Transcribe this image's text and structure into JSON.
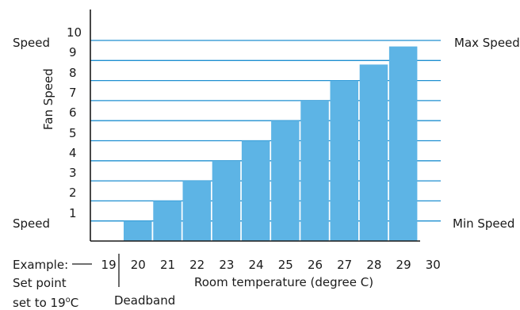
{
  "chart_data": {
    "type": "bar",
    "categories": [
      "20",
      "21",
      "22",
      "23",
      "24",
      "25",
      "26",
      "27",
      "28",
      "29"
    ],
    "values": [
      1,
      2,
      3,
      4,
      5,
      6,
      7,
      8,
      8.8,
      9.7
    ],
    "x_ticks": [
      "19",
      "20",
      "21",
      "22",
      "23",
      "24",
      "25",
      "26",
      "27",
      "28",
      "29",
      "30"
    ],
    "y_ticks": [
      1,
      2,
      3,
      4,
      5,
      6,
      7,
      8,
      9,
      10
    ],
    "ylim": [
      0,
      10
    ],
    "xlabel": "Room temperature (degree C)",
    "ylabel": "Fan Speed",
    "grid": true,
    "annotations": {
      "left_top": "Speed",
      "left_bottom": "Speed",
      "right_top": "Max Speed",
      "right_bottom": "Min Speed",
      "example_line1": "Example:",
      "example_line2": "Set point",
      "example_line3_prefix": "set to 19",
      "example_line3_sup": "o",
      "example_line3_suffix": "C",
      "deadband": "Deadband"
    },
    "colors": {
      "bar": "#5db4e5",
      "grid": "#1e8fd1",
      "axis": "#1a1a1a"
    }
  }
}
